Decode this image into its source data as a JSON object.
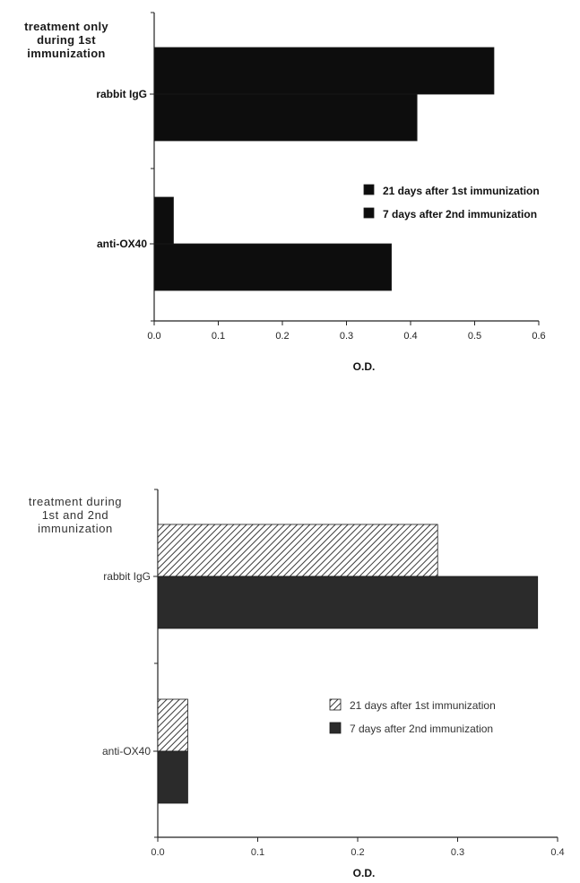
{
  "chart_data": [
    {
      "type": "bar",
      "orientation": "horizontal",
      "group_title": "treatment  only\nduring 1st\nimmunization",
      "categories": [
        "rabbit IgG",
        "anti-OX40"
      ],
      "series": [
        {
          "name": "21 days after 1st immunization",
          "values": [
            0.53,
            0.03
          ],
          "fill": "solid",
          "color": "#0d0d0d"
        },
        {
          "name": "7 days after 2nd immunization",
          "values": [
            0.41,
            0.37
          ],
          "fill": "solid",
          "color": "#0d0d0d"
        }
      ],
      "xlabel": "O.D.",
      "xlim": [
        0,
        0.6
      ],
      "xticks": [
        "0.0",
        "0.1",
        "0.2",
        "0.3",
        "0.4",
        "0.5",
        "0.6"
      ],
      "legend_position": "right"
    },
    {
      "type": "bar",
      "orientation": "horizontal",
      "group_title": "treatment  during\n1st and 2nd\nimmunization",
      "categories": [
        "rabbit IgG",
        "anti-OX40"
      ],
      "series": [
        {
          "name": "21 days after 1st immunization",
          "values": [
            0.28,
            0.03
          ],
          "fill": "hatched",
          "color": "#2b2b2b"
        },
        {
          "name": "7 days after 2nd immunization",
          "values": [
            0.38,
            0.03
          ],
          "fill": "solid",
          "color": "#2b2b2b"
        }
      ],
      "xlabel": "O.D.",
      "xlim": [
        0,
        0.4
      ],
      "xticks": [
        "0.0",
        "0.1",
        "0.2",
        "0.3",
        "0.4"
      ],
      "legend_position": "right"
    }
  ]
}
